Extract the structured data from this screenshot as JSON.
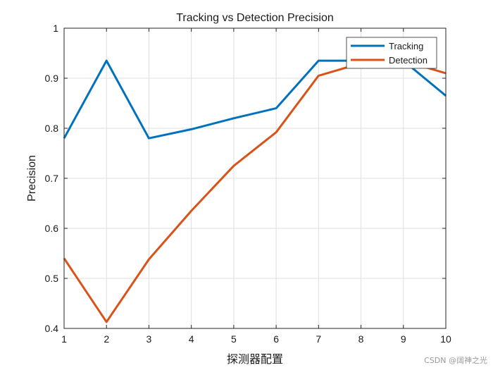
{
  "chart_data": {
    "type": "line",
    "title": "Tracking vs Detection Precision",
    "xlabel": "探测器配置",
    "ylabel": "Precision",
    "x": [
      1,
      2,
      3,
      4,
      5,
      6,
      7,
      8,
      9,
      10
    ],
    "xlim": [
      1,
      10
    ],
    "ylim": [
      0.4,
      1.0
    ],
    "xticks": [
      1,
      2,
      3,
      4,
      5,
      6,
      7,
      8,
      9,
      10
    ],
    "xtick_labels": [
      "1",
      "2",
      "3",
      "4",
      "5",
      "6",
      "7",
      "8",
      "9",
      "10"
    ],
    "yticks": [
      0.4,
      0.5,
      0.6,
      0.7,
      0.8,
      0.9,
      1.0
    ],
    "ytick_labels": [
      "0.4",
      "0.5",
      "0.6",
      "0.7",
      "0.8",
      "0.9",
      "1"
    ],
    "grid": true,
    "legend_position": "top-right",
    "series": [
      {
        "name": "Tracking",
        "color": "#0072BD",
        "values": [
          0.78,
          0.935,
          0.78,
          0.798,
          0.82,
          0.84,
          0.935,
          0.935,
          0.935,
          0.865
        ]
      },
      {
        "name": "Detection",
        "color": "#D95319",
        "values": [
          0.54,
          0.413,
          0.538,
          0.635,
          0.725,
          0.792,
          0.905,
          0.93,
          0.935,
          0.91
        ]
      }
    ]
  },
  "watermark": "CSDN @阔神之光"
}
